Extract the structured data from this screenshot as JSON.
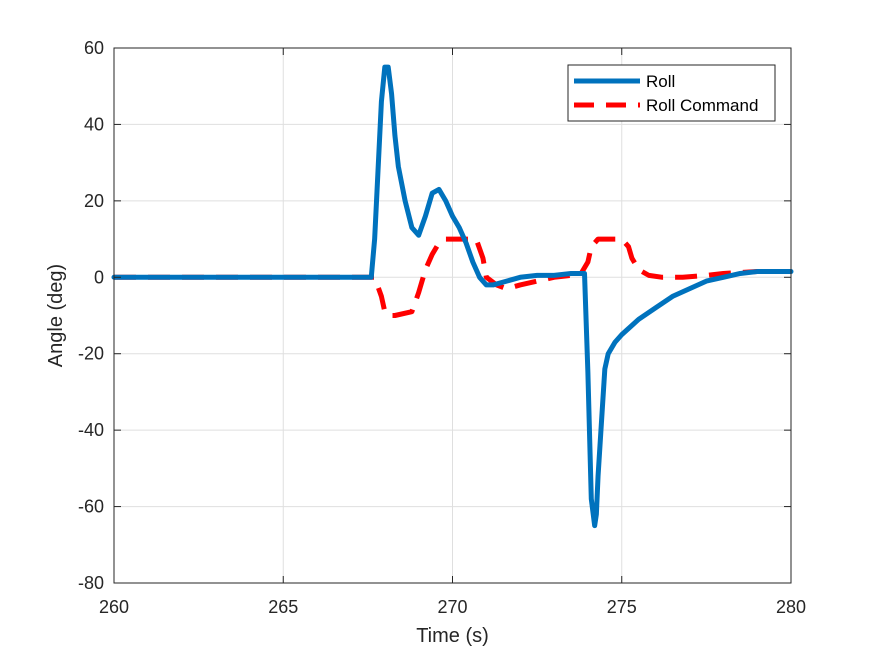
{
  "chart_data": {
    "type": "line",
    "title": "",
    "xlabel": "Time (s)",
    "ylabel": "Angle (deg)",
    "xlim": [
      260,
      280
    ],
    "ylim": [
      -80,
      60
    ],
    "xticks": [
      260,
      265,
      270,
      275,
      280
    ],
    "yticks": [
      -80,
      -60,
      -40,
      -20,
      0,
      20,
      40,
      60
    ],
    "xtick_labels": [
      "260",
      "265",
      "270",
      "275",
      "280"
    ],
    "ytick_labels": [
      "-80",
      "-60",
      "-40",
      "-20",
      "0",
      "20",
      "40",
      "60"
    ],
    "grid": true,
    "legend_position": "top-right",
    "series": [
      {
        "name": "Roll",
        "color": "#0072BD",
        "style": "solid",
        "x": [
          260,
          262,
          264,
          266,
          267.6,
          267.7,
          267.8,
          267.9,
          268.0,
          268.1,
          268.2,
          268.3,
          268.4,
          268.6,
          268.8,
          269.0,
          269.2,
          269.4,
          269.6,
          269.8,
          270.0,
          270.2,
          270.4,
          270.6,
          270.8,
          271.0,
          271.2,
          271.6,
          272.0,
          272.5,
          273.0,
          273.5,
          273.9,
          274.0,
          274.1,
          274.2,
          274.25,
          274.3,
          274.4,
          274.5,
          274.6,
          274.8,
          275.0,
          275.5,
          276.0,
          276.5,
          277.0,
          277.5,
          278.0,
          278.5,
          279.0,
          279.5,
          280
        ],
        "y": [
          0,
          0,
          0,
          0,
          0,
          10,
          28,
          46,
          55,
          55,
          48,
          37,
          29,
          20,
          13,
          11,
          16,
          22,
          23,
          20,
          16,
          13,
          9,
          4,
          0,
          -2,
          -2,
          -1,
          0,
          0.5,
          0.5,
          1,
          1,
          -25,
          -58,
          -65,
          -62,
          -52,
          -38,
          -24,
          -20,
          -17,
          -15,
          -11,
          -8,
          -5,
          -3,
          -1,
          0,
          1,
          1.5,
          1.5,
          1.5
        ]
      },
      {
        "name": "Roll Command",
        "color": "#FF0000",
        "style": "dashed",
        "x": [
          260,
          262,
          264,
          266,
          267.7,
          267.9,
          268.0,
          268.1,
          268.3,
          268.8,
          269.0,
          269.2,
          269.4,
          269.6,
          269.8,
          270.0,
          270.4,
          270.7,
          270.9,
          271.0,
          271.3,
          271.6,
          272.0,
          272.5,
          273.0,
          273.5,
          273.8,
          274.0,
          274.1,
          274.3,
          274.5,
          274.7,
          275.0,
          275.2,
          275.3,
          275.5,
          275.8,
          276.2,
          276.8,
          277.5,
          278.0,
          279.0,
          280
        ],
        "y": [
          0,
          0,
          0,
          0,
          0,
          -5,
          -9,
          -10,
          -10,
          -9,
          -4,
          2,
          6,
          9,
          10,
          10,
          10,
          10,
          5,
          0,
          -2,
          -3,
          -2,
          -1,
          0,
          0.5,
          1,
          4,
          8,
          10,
          10,
          10,
          10,
          8,
          5,
          2,
          0.5,
          0,
          0,
          0.5,
          1,
          1.5,
          1.5
        ]
      }
    ]
  }
}
